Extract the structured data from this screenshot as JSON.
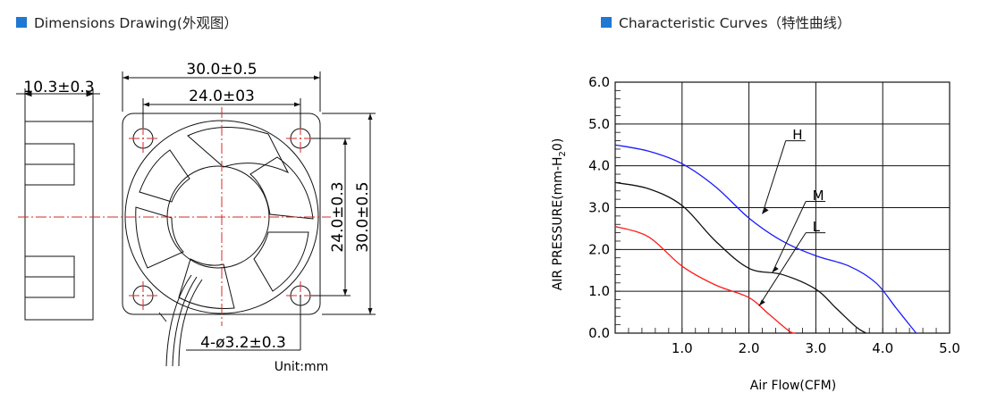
{
  "left_section": {
    "title": "Dimensions Drawing(外观图）",
    "dims": {
      "overall_width": "30.0±0.5",
      "hole_spacing_h": "24.0±03",
      "thickness": "10.3±0.3",
      "hole_spacing_v": "24.0±0.3",
      "overall_height": "30.0±0.5",
      "holes": "4-ø3.2±0.3",
      "unit": "Unit:mm"
    }
  },
  "right_section": {
    "title": "Characteristic Curves（特性曲线）"
  },
  "chart_data": {
    "type": "line",
    "xlabel": "Air Flow(CFM)",
    "ylabel": "AIR PRESSURE(mm-H2O)",
    "ylabel_parts": {
      "pre": "AIR PRESSURE(mm-H",
      "sub": "2",
      "post": "0)"
    },
    "xlim": [
      0,
      5
    ],
    "ylim": [
      0,
      6
    ],
    "x_ticks": [
      "1.0",
      "2.0",
      "3.0",
      "4.0",
      "5.0"
    ],
    "y_ticks": [
      "0.0",
      "1.0",
      "2.0",
      "3.0",
      "4.0",
      "5.0",
      "6.0"
    ],
    "grid": true,
    "series": [
      {
        "name": "H",
        "color": "#1a1aff",
        "x": [
          0.0,
          0.5,
          1.0,
          1.5,
          2.0,
          2.5,
          3.0,
          3.5,
          3.9,
          4.2,
          4.5
        ],
        "y": [
          4.5,
          4.35,
          4.05,
          3.5,
          2.75,
          2.2,
          1.85,
          1.6,
          1.2,
          0.6,
          0.0
        ]
      },
      {
        "name": "M",
        "color": "#111111",
        "x": [
          0.0,
          0.5,
          1.0,
          1.5,
          2.0,
          2.5,
          3.0,
          3.3,
          3.6,
          3.75
        ],
        "y": [
          3.6,
          3.45,
          3.05,
          2.2,
          1.55,
          1.4,
          1.05,
          0.6,
          0.15,
          0.0
        ]
      },
      {
        "name": "L",
        "color": "#ff1a1a",
        "x": [
          0.0,
          0.5,
          1.0,
          1.5,
          2.0,
          2.3,
          2.6,
          2.7
        ],
        "y": [
          2.55,
          2.3,
          1.6,
          1.15,
          0.85,
          0.45,
          0.05,
          0.0
        ]
      }
    ],
    "annotations": [
      {
        "text": "H",
        "series": "H"
      },
      {
        "text": "M",
        "series": "M"
      },
      {
        "text": "L",
        "series": "L"
      }
    ]
  },
  "colors": {
    "accent": "#1f78d1",
    "centerline": "#d42a2a"
  }
}
